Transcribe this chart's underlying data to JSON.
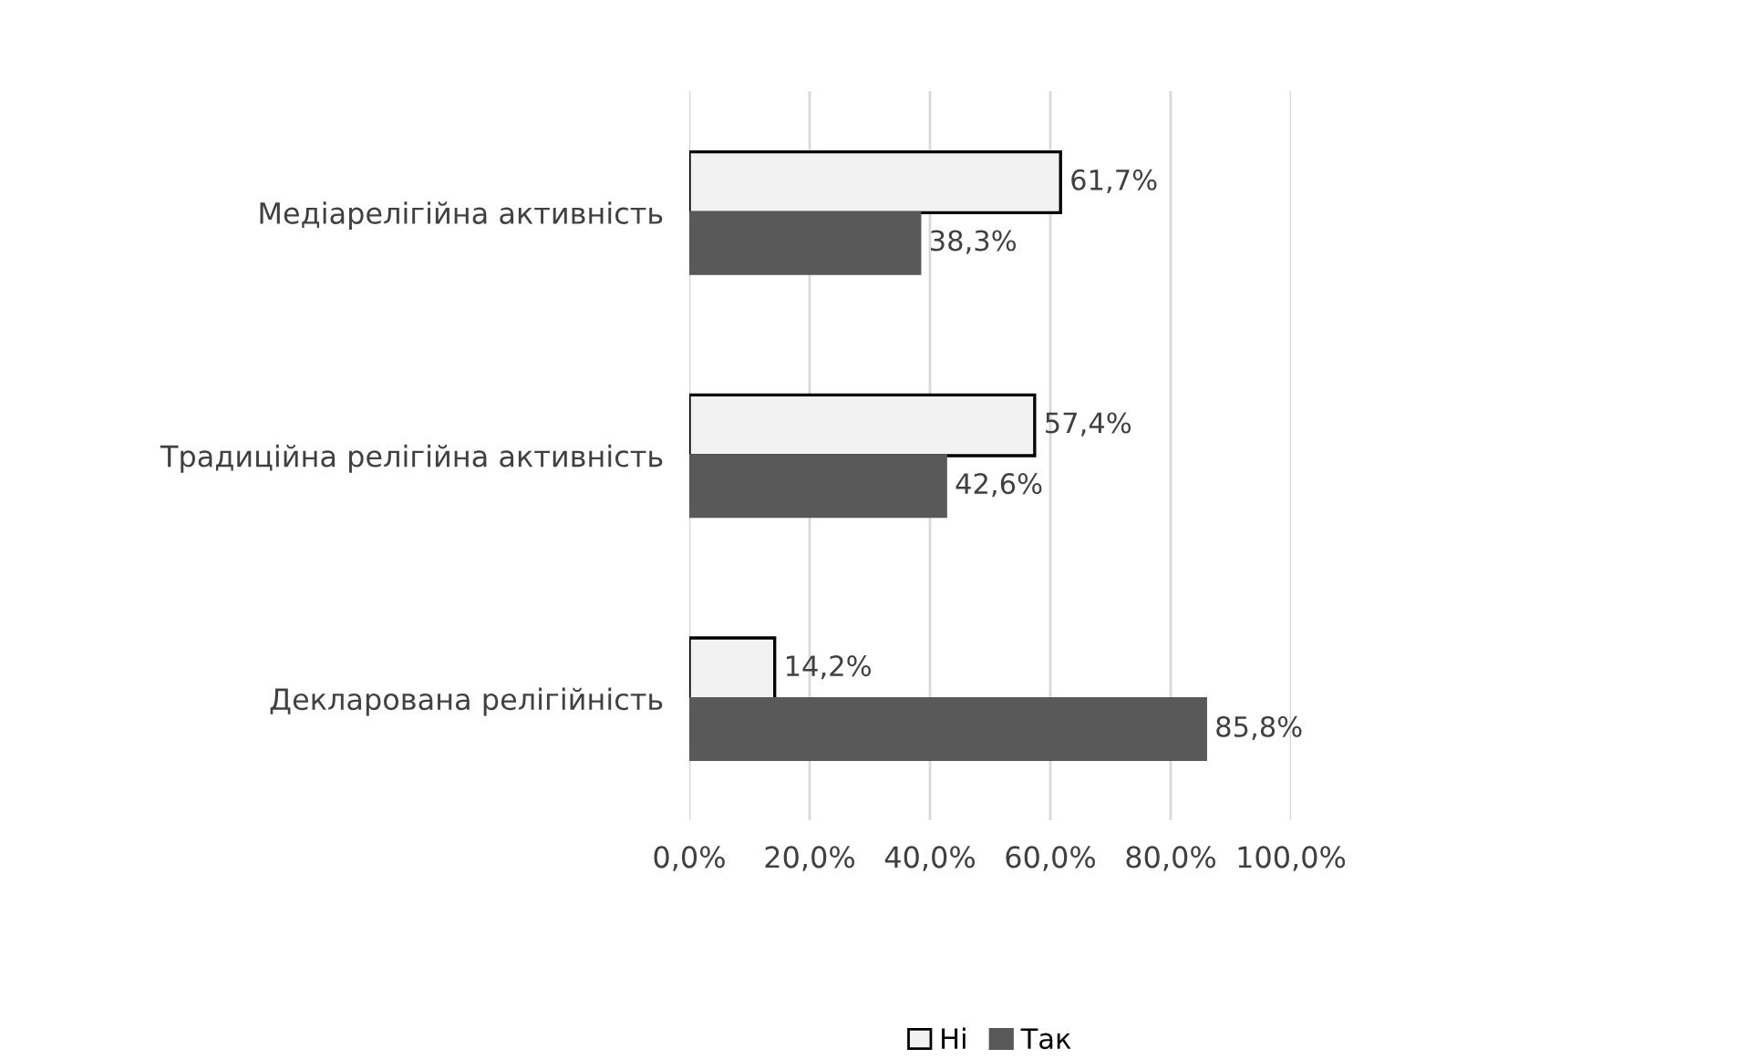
{
  "chart_data": {
    "type": "bar",
    "orientation": "horizontal",
    "categories": [
      "Медіарелігійна активність",
      "Традиційна релігійна активність",
      "Декларована релігійність"
    ],
    "series": [
      {
        "name": "Ні",
        "color": "#f2f2f2",
        "values": [
          61.7,
          57.4,
          14.2
        ],
        "value_labels": [
          "61,7%",
          "57,4%",
          "14,2%"
        ]
      },
      {
        "name": "Так",
        "color": "#595959",
        "values": [
          38.3,
          42.6,
          85.8
        ],
        "value_labels": [
          "38,3%",
          "42,6%",
          "85,8%"
        ]
      }
    ],
    "xlim": [
      0,
      100
    ],
    "xticks": [
      {
        "value": 0,
        "label": "0,0%"
      },
      {
        "value": 20,
        "label": "20,0%"
      },
      {
        "value": 40,
        "label": "40,0%"
      },
      {
        "value": 60,
        "label": "60,0%"
      },
      {
        "value": 80,
        "label": "80,0%"
      },
      {
        "value": 100,
        "label": "100,0%"
      }
    ],
    "grid": "x",
    "legend": "bottom"
  }
}
